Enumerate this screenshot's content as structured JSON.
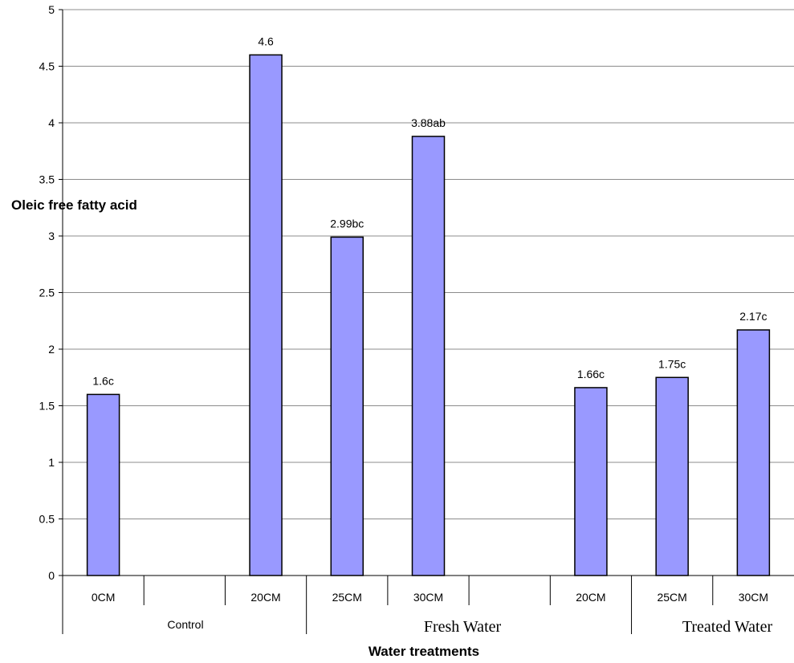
{
  "chart_data": {
    "type": "bar",
    "ylabel": "Oleic free fatty acid",
    "xlabel": "Water treatments",
    "ylim": [
      0,
      5
    ],
    "yticks": [
      "0",
      "0.5",
      "1",
      "1.5",
      "2",
      "2.5",
      "3",
      "3.5",
      "4",
      "4.5",
      "5"
    ],
    "grid": true,
    "bar_color": "#9999ff",
    "categories": [
      "0CM",
      "",
      "20CM",
      "25CM",
      "30CM",
      "",
      "20CM",
      "25CM",
      "30CM"
    ],
    "values": [
      1.6,
      null,
      4.6,
      2.99,
      3.88,
      null,
      1.66,
      1.75,
      2.17
    ],
    "data_labels": [
      "1.6c",
      "",
      "4.6",
      "2.99bc",
      "3.88ab",
      "",
      "1.66c",
      "1.75c",
      "2.17c"
    ],
    "groups": [
      {
        "label": "Control"
      },
      {
        "label": "Fresh Water"
      },
      {
        "label": "Treated Water"
      }
    ]
  }
}
